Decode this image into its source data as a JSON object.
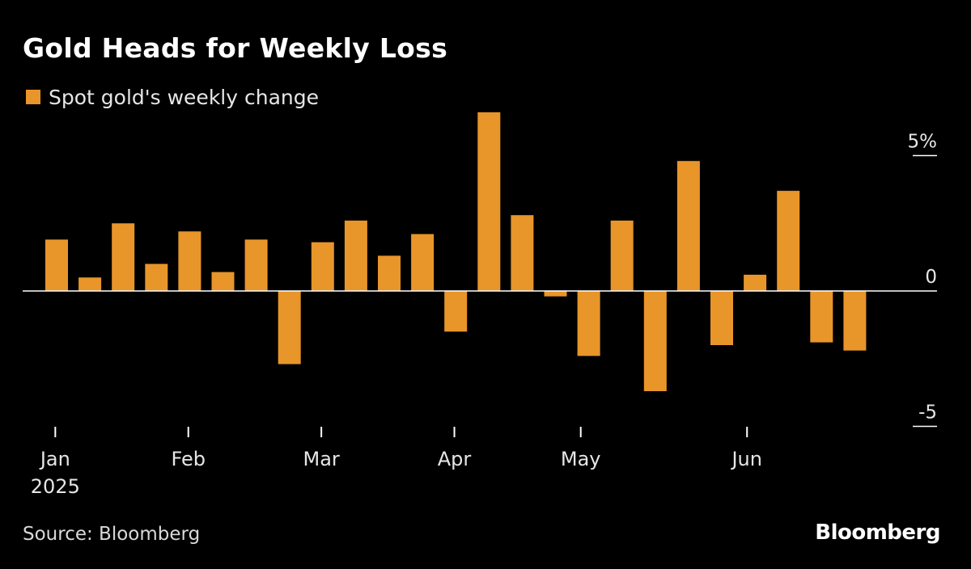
{
  "title": "Gold Heads for Weekly Loss",
  "legend": {
    "label": "Spot gold's weekly change",
    "color": "#e8952a"
  },
  "source": "Source: Bloomberg",
  "brand": "Bloomberg",
  "colors": {
    "background": "#000000",
    "bar": "#e8952a",
    "axis": "#ffffff",
    "text": "#e6e6e6"
  },
  "chart_data": {
    "type": "bar",
    "title": "Gold Heads for Weekly Loss",
    "xlabel": "",
    "ylabel": "",
    "ylim": [
      -5,
      5
    ],
    "y_ticks": [
      {
        "value": 5,
        "label": "5%"
      },
      {
        "value": 0,
        "label": "0"
      },
      {
        "value": -5,
        "label": "-5"
      }
    ],
    "x_tick_labels": [
      {
        "label": "Jan",
        "sublabel": "2025",
        "week_index": 0.3
      },
      {
        "label": "Feb",
        "sublabel": "",
        "week_index": 4.3
      },
      {
        "label": "Mar",
        "sublabel": "",
        "week_index": 8.3
      },
      {
        "label": "Apr",
        "sublabel": "",
        "week_index": 12.3
      },
      {
        "label": "May",
        "sublabel": "",
        "week_index": 16.1
      },
      {
        "label": "Jun",
        "sublabel": "",
        "week_index": 21.1
      }
    ],
    "grid": false,
    "series": [
      {
        "name": "Spot gold's weekly change",
        "values": [
          1.9,
          0.5,
          2.5,
          1.0,
          2.2,
          0.7,
          1.9,
          -2.7,
          1.8,
          2.6,
          1.3,
          2.1,
          -1.5,
          6.6,
          2.8,
          -0.2,
          -2.4,
          2.6,
          -3.7,
          4.8,
          -2.0,
          0.6,
          3.7,
          -1.9,
          -2.2
        ]
      }
    ]
  }
}
